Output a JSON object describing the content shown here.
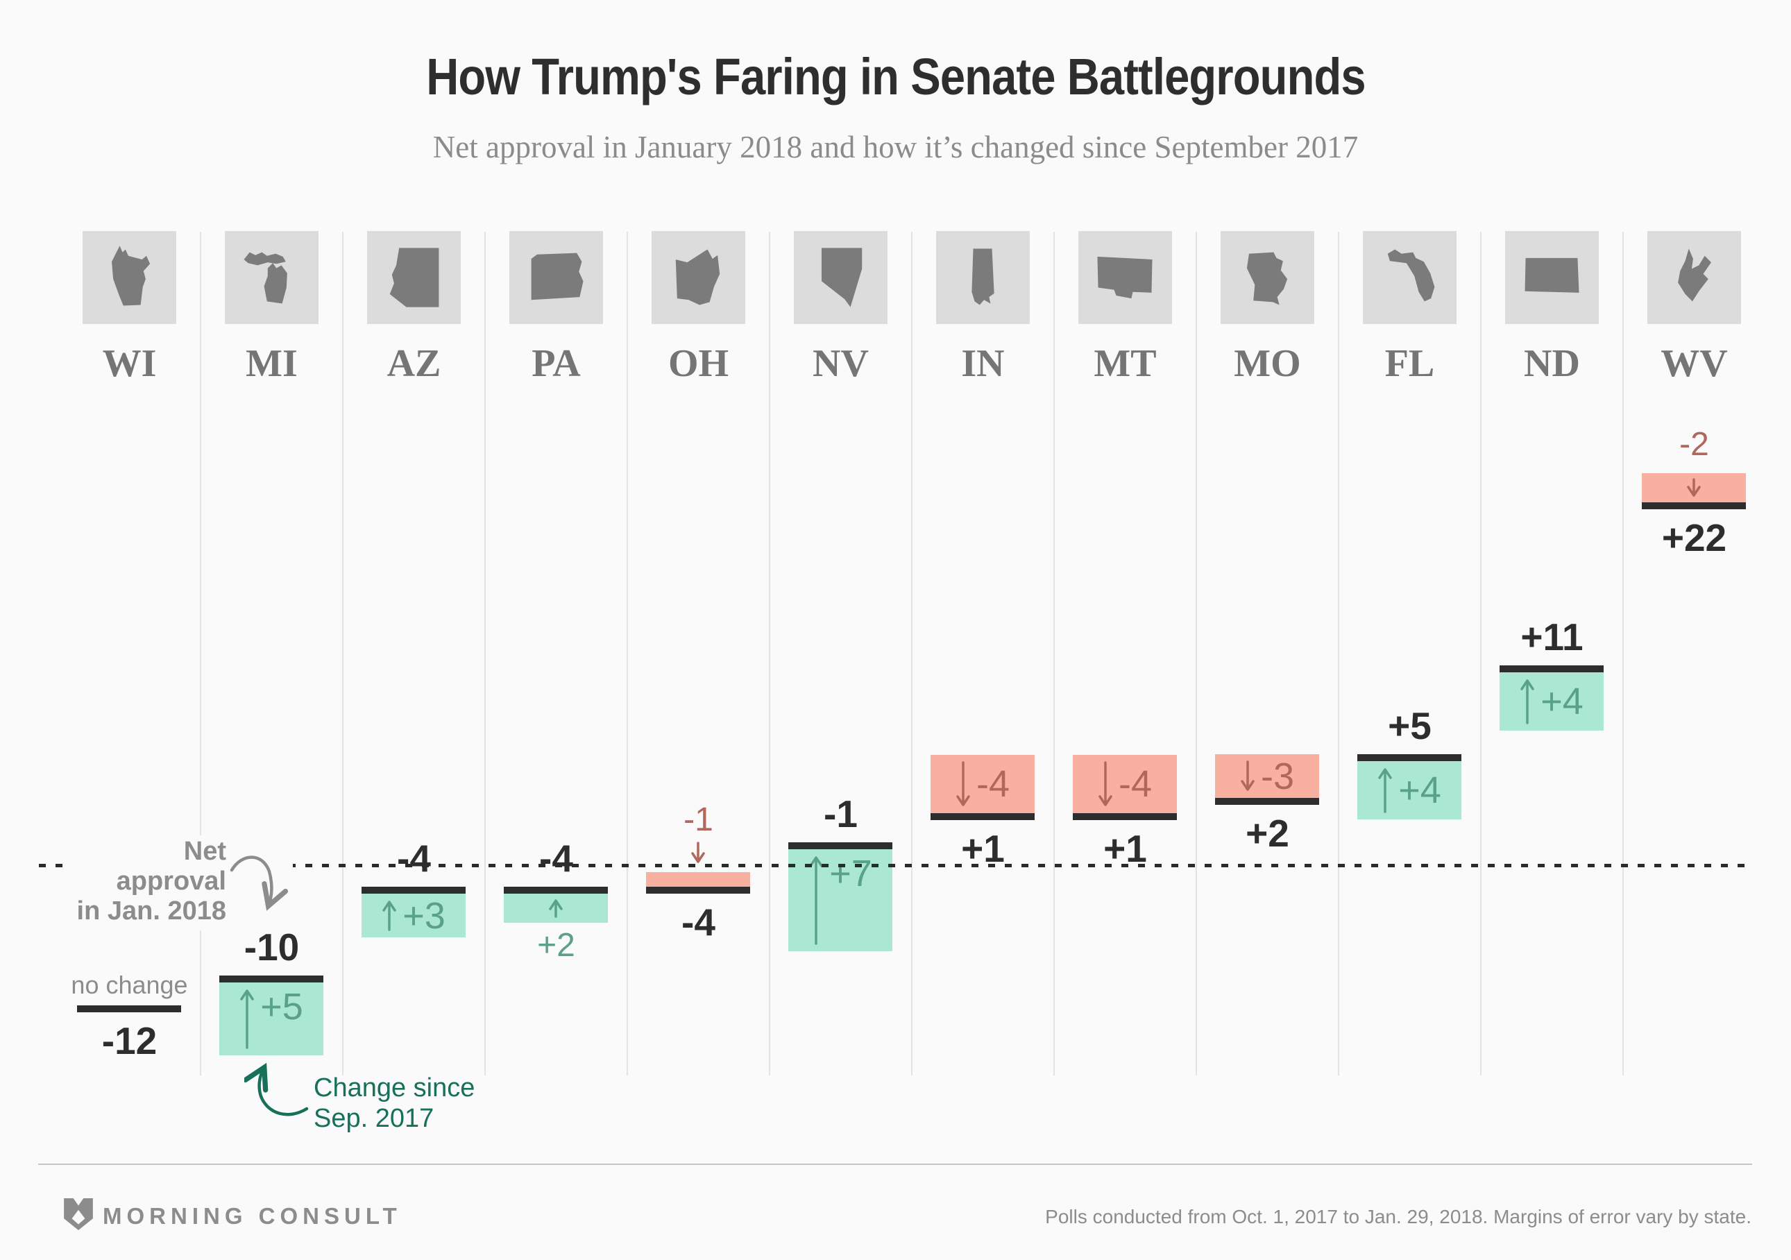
{
  "title": "How Trump's Faring in Senate Battlegrounds",
  "subtitle": "Net approval in January 2018 and how it’s changed since September 2017",
  "annotations": {
    "net_line1": "Net approval",
    "net_line2": "in Jan. 2018",
    "change_line1": "Change since",
    "change_line2": "Sep. 2017"
  },
  "footer": {
    "brand": "MORNING CONSULT",
    "note": "Polls conducted from Oct. 1, 2017 to Jan. 29, 2018. Margins of error vary by state."
  },
  "colors": {
    "background": "#fafafa",
    "positive_fill": "#abe8d3",
    "positive_text": "#5aa287",
    "negative_fill": "#f8b1a0",
    "negative_text": "#b2675d",
    "net_line": "#2d2d2d",
    "dark_text": "#2d2d2d",
    "muted_text": "#8c8c8c",
    "annotation_green": "#17705a",
    "tile_bg": "#dcdcdc",
    "silhouette": "#7b7b7b",
    "separator": "#e3e3e3"
  },
  "states": [
    {
      "abbr": "WI",
      "net": -12,
      "net_label": "-12",
      "change": 0,
      "change_label": "no change",
      "direction": "none"
    },
    {
      "abbr": "MI",
      "net": -10,
      "net_label": "-10",
      "change": 5,
      "change_label": "+5",
      "direction": "up"
    },
    {
      "abbr": "AZ",
      "net": -4,
      "net_label": "-4",
      "change": 3,
      "change_label": "+3",
      "direction": "up"
    },
    {
      "abbr": "PA",
      "net": -4,
      "net_label": "-4",
      "change": 2,
      "change_label": "+2",
      "direction": "up"
    },
    {
      "abbr": "OH",
      "net": -4,
      "net_label": "-4",
      "change": -1,
      "change_label": "-1",
      "direction": "down"
    },
    {
      "abbr": "NV",
      "net": -1,
      "net_label": "-1",
      "change": 7,
      "change_label": "+7",
      "direction": "up"
    },
    {
      "abbr": "IN",
      "net": 1,
      "net_label": "+1",
      "change": -4,
      "change_label": "-4",
      "direction": "down"
    },
    {
      "abbr": "MT",
      "net": 1,
      "net_label": "+1",
      "change": -4,
      "change_label": "-4",
      "direction": "down"
    },
    {
      "abbr": "MO",
      "net": 2,
      "net_label": "+2",
      "change": -3,
      "change_label": "-3",
      "direction": "down"
    },
    {
      "abbr": "FL",
      "net": 5,
      "net_label": "+5",
      "change": 4,
      "change_label": "+4",
      "direction": "up"
    },
    {
      "abbr": "ND",
      "net": 11,
      "net_label": "+11",
      "change": 4,
      "change_label": "+4",
      "direction": "up"
    },
    {
      "abbr": "WV",
      "net": 22,
      "net_label": "+22",
      "change": -2,
      "change_label": "-2",
      "direction": "down"
    }
  ],
  "chart_data": {
    "type": "bar",
    "title": "How Trump's Faring in Senate Battlegrounds",
    "subtitle": "Net approval in January 2018 and how it’s changed since September 2017",
    "categories": [
      "WI",
      "MI",
      "AZ",
      "PA",
      "OH",
      "NV",
      "IN",
      "MT",
      "MO",
      "FL",
      "ND",
      "WV"
    ],
    "series": [
      {
        "name": "Net approval in Jan. 2018",
        "values": [
          -12,
          -10,
          -4,
          -4,
          -4,
          -1,
          1,
          1,
          2,
          5,
          11,
          22
        ]
      },
      {
        "name": "Change since Sep. 2017",
        "values": [
          0,
          5,
          3,
          2,
          -1,
          7,
          -4,
          -4,
          -3,
          4,
          4,
          -2
        ]
      }
    ],
    "annotations": [
      "Net approval in Jan. 2018",
      "Change since Sep. 2017",
      "no change (WI)"
    ],
    "legend_position": "in-chart callouts",
    "grid": "single dotted horizontal reference line",
    "note": "Polls conducted from Oct. 1, 2017 to Jan. 29, 2018. Margins of error vary by state.",
    "source": "MORNING CONSULT"
  }
}
